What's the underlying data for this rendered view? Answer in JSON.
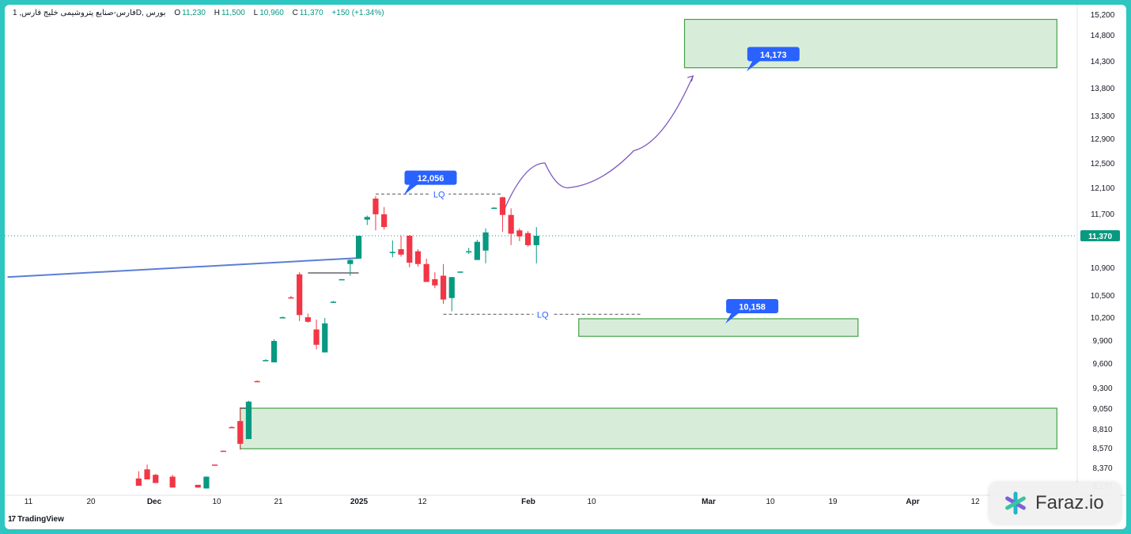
{
  "header": {
    "symbol": "فارس-صنایع پتروشیمی خلیج فارس, 1D, بورس",
    "open_label": "O",
    "open": "11,230",
    "high_label": "H",
    "high": "11,500",
    "low_label": "L",
    "low": "10,960",
    "close_label": "C",
    "close": "11,370",
    "change": "+150 (+1.34%)"
  },
  "branding": {
    "tradingview": "TradingView",
    "tradingview_mark": "17",
    "faraz": "Faraz.io"
  },
  "colors": {
    "up": "#089981",
    "down": "#f23645",
    "zone_fill": "#c8e6c9",
    "zone_border": "#43a047",
    "callout": "#2962ff",
    "trendline": "#5b7fd4",
    "projection": "#7e57c2",
    "price_tag": "#089981"
  },
  "chart_data": {
    "type": "candlestick",
    "y_axis_ticks": [
      "15,200",
      "14,800",
      "14,300",
      "13,800",
      "13,300",
      "12,900",
      "12,500",
      "12,100",
      "11,700",
      "10,900",
      "10,500",
      "10,200",
      "9,900",
      "9,600",
      "9,300",
      "9,050",
      "8,810",
      "8,570",
      "8,370",
      "8,170"
    ],
    "x_axis_ticks": [
      "11",
      "20",
      "Dec",
      "10",
      "21",
      "2025",
      "12",
      "Feb",
      "10",
      "Mar",
      "10",
      "19",
      "Apr",
      "12"
    ],
    "x_axis_bold": [
      "Dec",
      "2025",
      "Feb",
      "Mar",
      "Apr"
    ],
    "last_price": 11370,
    "last_price_label": "11,370",
    "candles": [
      {
        "t": 15.5,
        "o": 8250,
        "h": 8330,
        "l": 8170,
        "c": 8170
      },
      {
        "t": 16.5,
        "o": 8350,
        "h": 8400,
        "l": 8240,
        "c": 8240
      },
      {
        "t": 17.5,
        "o": 8290,
        "h": 8300,
        "l": 8200,
        "c": 8200
      },
      {
        "t": 19.5,
        "o": 8270,
        "h": 8290,
        "l": 8150,
        "c": 8150
      },
      {
        "t": 22.5,
        "o": 8180,
        "h": 8180,
        "l": 8150,
        "c": 8150
      },
      {
        "t": 23.5,
        "o": 8140,
        "h": 8270,
        "l": 8140,
        "c": 8270
      },
      {
        "t": 24.5,
        "o": 8400,
        "h": 8400,
        "l": 8390,
        "c": 8390
      },
      {
        "t": 25.5,
        "o": 8540,
        "h": 8540,
        "l": 8530,
        "c": 8530
      },
      {
        "t": 26.5,
        "o": 8830,
        "h": 8840,
        "l": 8820,
        "c": 8820
      },
      {
        "t": 27.5,
        "o": 8900,
        "h": 9060,
        "l": 8550,
        "c": 8620
      },
      {
        "t": 28.5,
        "o": 8680,
        "h": 9140,
        "l": 8680,
        "c": 9130
      },
      {
        "t": 29.5,
        "o": 9380,
        "h": 9390,
        "l": 9370,
        "c": 9370
      },
      {
        "t": 30.5,
        "o": 9640,
        "h": 9650,
        "l": 9630,
        "c": 9640
      },
      {
        "t": 31.5,
        "o": 9610,
        "h": 9910,
        "l": 9610,
        "c": 9890
      },
      {
        "t": 32.5,
        "o": 10200,
        "h": 10210,
        "l": 10190,
        "c": 10200
      },
      {
        "t": 33.5,
        "o": 10470,
        "h": 10490,
        "l": 10450,
        "c": 10460
      },
      {
        "t": 34.5,
        "o": 10800,
        "h": 10830,
        "l": 10150,
        "c": 10230
      },
      {
        "t": 35.5,
        "o": 10200,
        "h": 10250,
        "l": 10130,
        "c": 10140
      },
      {
        "t": 36.5,
        "o": 10040,
        "h": 10170,
        "l": 9780,
        "c": 9840
      },
      {
        "t": 37.5,
        "o": 9740,
        "h": 10190,
        "l": 9740,
        "c": 10120
      },
      {
        "t": 38.5,
        "o": 10410,
        "h": 10420,
        "l": 10400,
        "c": 10410
      },
      {
        "t": 39.5,
        "o": 10730,
        "h": 10730,
        "l": 10720,
        "c": 10730
      },
      {
        "t": 40.5,
        "o": 10950,
        "h": 11020,
        "l": 10780,
        "c": 11010
      },
      {
        "t": 41.5,
        "o": 11030,
        "h": 11370,
        "l": 11030,
        "c": 11370
      },
      {
        "t": 42.5,
        "o": 11610,
        "h": 11670,
        "l": 11530,
        "c": 11650
      },
      {
        "t": 43.5,
        "o": 11930,
        "h": 11970,
        "l": 11450,
        "c": 11690
      },
      {
        "t": 44.5,
        "o": 11690,
        "h": 11800,
        "l": 11460,
        "c": 11500
      },
      {
        "t": 45.5,
        "o": 11130,
        "h": 11300,
        "l": 11050,
        "c": 11130
      },
      {
        "t": 46.5,
        "o": 11170,
        "h": 11370,
        "l": 11060,
        "c": 11090
      },
      {
        "t": 47.5,
        "o": 11370,
        "h": 11380,
        "l": 10900,
        "c": 10970
      },
      {
        "t": 48.5,
        "o": 11140,
        "h": 11170,
        "l": 10910,
        "c": 10950
      },
      {
        "t": 49.5,
        "o": 10950,
        "h": 11030,
        "l": 10690,
        "c": 10690
      },
      {
        "t": 50.5,
        "o": 10730,
        "h": 10830,
        "l": 10600,
        "c": 10640
      },
      {
        "t": 51.5,
        "o": 10780,
        "h": 10950,
        "l": 10380,
        "c": 10440
      },
      {
        "t": 52.5,
        "o": 10460,
        "h": 10760,
        "l": 10280,
        "c": 10760
      },
      {
        "t": 53.5,
        "o": 10840,
        "h": 10840,
        "l": 10830,
        "c": 10840
      },
      {
        "t": 54.5,
        "o": 11140,
        "h": 11190,
        "l": 11100,
        "c": 11140
      },
      {
        "t": 55.5,
        "o": 11010,
        "h": 11310,
        "l": 11010,
        "c": 11280
      },
      {
        "t": 56.5,
        "o": 11150,
        "h": 11480,
        "l": 10960,
        "c": 11420
      },
      {
        "t": 57.5,
        "o": 11790,
        "h": 11800,
        "l": 11780,
        "c": 11790
      },
      {
        "t": 58.5,
        "o": 11950,
        "h": 11960,
        "l": 11430,
        "c": 11680
      },
      {
        "t": 59.5,
        "o": 11680,
        "h": 11780,
        "l": 11230,
        "c": 11400
      },
      {
        "t": 60.5,
        "o": 11450,
        "h": 11480,
        "l": 11290,
        "c": 11360
      },
      {
        "t": 61.5,
        "o": 11410,
        "h": 11440,
        "l": 11210,
        "c": 11230
      },
      {
        "t": 62.5,
        "o": 11230,
        "h": 11500,
        "l": 10960,
        "c": 11370
      }
    ],
    "zones": [
      {
        "t1": 80,
        "t2": 124,
        "top": 15100,
        "bottom": 14173
      },
      {
        "t1": 67.5,
        "t2": 100.5,
        "top": 10180,
        "bottom": 9950
      },
      {
        "t1": 27.5,
        "t2": 124,
        "top": 9050,
        "bottom": 8560
      }
    ],
    "labels": [
      {
        "text": "14,173",
        "t": 90.5,
        "price": 14430
      },
      {
        "text": "12,056",
        "t": 50,
        "price": 12260
      },
      {
        "text": "10,158",
        "t": 88,
        "price": 10350
      }
    ],
    "liquidity_levels": [
      {
        "text": "LQ",
        "price": 12000,
        "t1": 43.5,
        "t2": 58.5
      },
      {
        "text": "LQ",
        "price": 10240,
        "t1": 51.5,
        "t2": 75
      }
    ],
    "trendline": {
      "t1": 0,
      "p1": 10760,
      "t2": 41.5,
      "p2": 11040
    },
    "breakout_levels": [
      {
        "price": 10820,
        "t1": 35.5,
        "t2": 41.5
      },
      {
        "price": 9050,
        "t1": 27.5,
        "t2": 28.8
      }
    ],
    "projection_path": [
      {
        "t": 58.5,
        "p": 11700
      },
      {
        "t": 63.5,
        "p": 12500
      },
      {
        "t": 66.5,
        "p": 12100
      },
      {
        "t": 74,
        "p": 12700
      },
      {
        "t": 81,
        "p": 14020
      }
    ]
  }
}
